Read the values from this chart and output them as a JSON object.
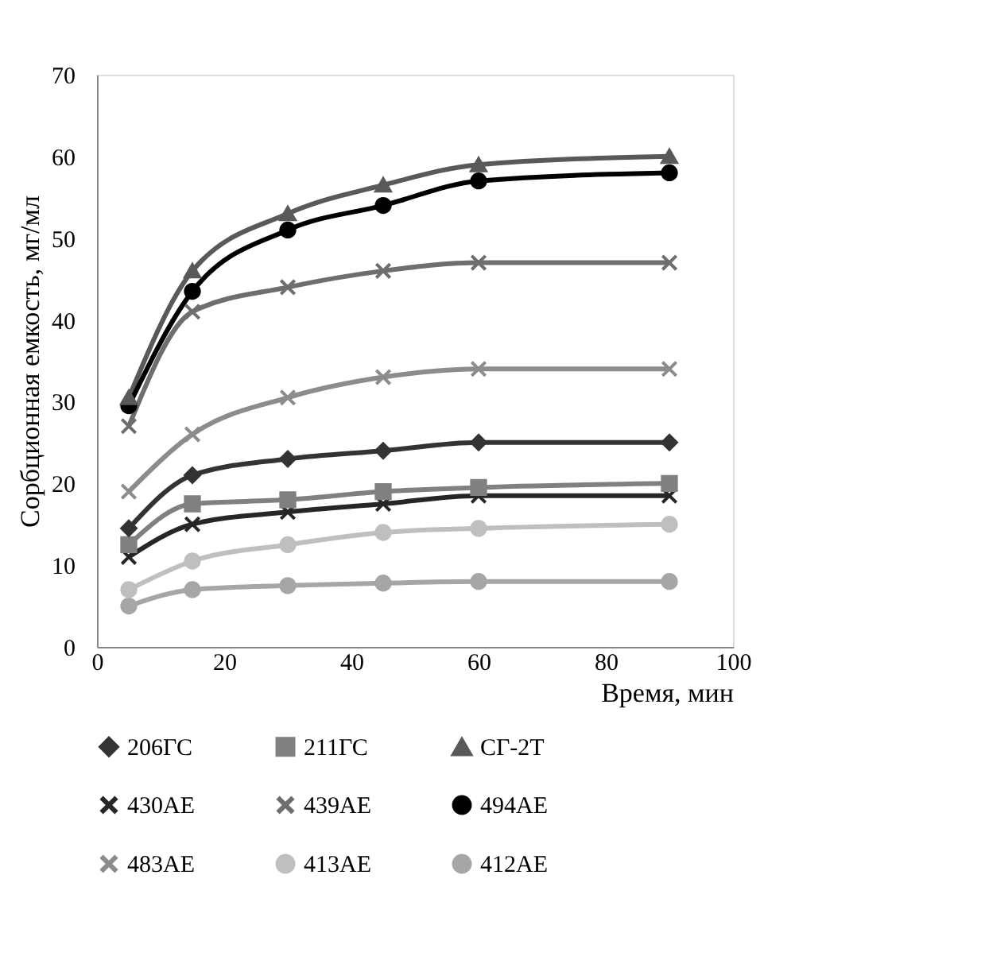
{
  "chart_data": {
    "type": "line",
    "xlabel": "Время, мин",
    "ylabel": "Сорбционная емкость, мг/мл",
    "x": [
      5,
      15,
      30,
      45,
      60,
      90
    ],
    "xlim": [
      0,
      100
    ],
    "xticks": [
      0,
      20,
      40,
      60,
      80,
      100
    ],
    "ylim": [
      0,
      70
    ],
    "yticks": [
      0,
      10,
      20,
      30,
      40,
      50,
      60,
      70
    ],
    "grid": false,
    "legend": "bottom",
    "line_style": "solid",
    "series": [
      {
        "name": "206ГС",
        "color": "#333333",
        "marker": "diamond",
        "values": [
          14.5,
          21,
          23,
          24,
          25,
          25
        ]
      },
      {
        "name": "211ГС",
        "color": "#808080",
        "marker": "square",
        "values": [
          12.5,
          17.5,
          18,
          19,
          19.5,
          20
        ]
      },
      {
        "name": "СГ-2Т",
        "color": "#595959",
        "marker": "triangle",
        "values": [
          30.5,
          46,
          53,
          56.5,
          59,
          60
        ]
      },
      {
        "name": "430АЕ",
        "color": "#262626",
        "marker": "cross",
        "values": [
          11,
          15,
          16.5,
          17.5,
          18.5,
          18.5
        ]
      },
      {
        "name": "439АЕ",
        "color": "#6e6e6e",
        "marker": "cross",
        "values": [
          27,
          41,
          44,
          46,
          47,
          47
        ]
      },
      {
        "name": "494АЕ",
        "color": "#000000",
        "marker": "circle",
        "values": [
          29.5,
          43.5,
          51,
          54,
          57,
          58
        ]
      },
      {
        "name": "483АЕ",
        "color": "#8c8c8c",
        "marker": "cross",
        "values": [
          19,
          26,
          30.5,
          33,
          34,
          34
        ]
      },
      {
        "name": "413АЕ",
        "color": "#bfbfbf",
        "marker": "circle",
        "values": [
          7,
          10.5,
          12.5,
          14,
          14.5,
          15
        ]
      },
      {
        "name": "412АЕ",
        "color": "#a6a6a6",
        "marker": "circle",
        "values": [
          5,
          7,
          7.5,
          7.8,
          8,
          8
        ]
      }
    ]
  }
}
